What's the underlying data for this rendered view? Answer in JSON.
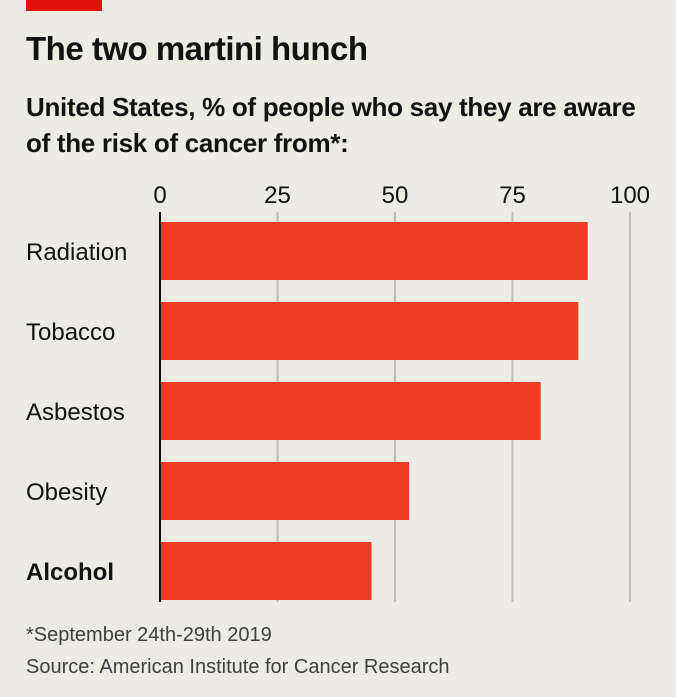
{
  "header": {
    "title": "The two martini hunch",
    "subtitle": "United States, % of people who say they are aware of the risk of cancer from*:"
  },
  "footer": {
    "footnote": "*September 24th-29th 2019",
    "source": "Source: American Institute for Cancer Research"
  },
  "colors": {
    "bar": "#EE3B24",
    "accent": "#E3120B",
    "grid": "#BFBFB6",
    "axis": "#121212"
  },
  "chart_data": {
    "type": "bar",
    "orientation": "horizontal",
    "categories": [
      "Radiation",
      "Tobacco",
      "Asbestos",
      "Obesity",
      "Alcohol"
    ],
    "highlighted_category": "Alcohol",
    "values": [
      91,
      89,
      81,
      53,
      45
    ],
    "xlim": [
      0,
      100
    ],
    "xticks": [
      0,
      25,
      50,
      75,
      100
    ],
    "tick_labels": [
      "0",
      "25",
      "50",
      "75",
      "100"
    ],
    "xaxis_position": "top",
    "grid": true,
    "legend": "none"
  }
}
